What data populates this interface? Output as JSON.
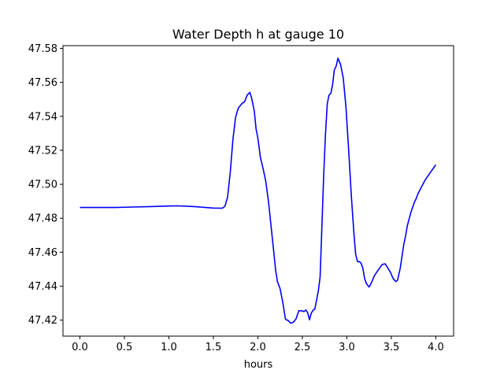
{
  "chart_data": {
    "type": "line",
    "title": "Water Depth h at gauge 10",
    "xlabel": "hours",
    "ylabel": "",
    "xlim": [
      -0.19,
      4.2
    ],
    "ylim": [
      47.4106,
      47.5816
    ],
    "xticks": [
      0.0,
      0.5,
      1.0,
      1.5,
      2.0,
      2.5,
      3.0,
      3.5,
      4.0
    ],
    "xtick_labels": [
      "0.0",
      "0.5",
      "1.0",
      "1.5",
      "2.0",
      "2.5",
      "3.0",
      "3.5",
      "4.0"
    ],
    "yticks": [
      47.42,
      47.44,
      47.46,
      47.48,
      47.5,
      47.52,
      47.54,
      47.56,
      47.58
    ],
    "ytick_labels": [
      "47.42",
      "47.44",
      "47.46",
      "47.48",
      "47.50",
      "47.52",
      "47.54",
      "47.56",
      "47.58"
    ],
    "grid": false,
    "series": [
      {
        "color": "#0000ff",
        "x": [
          0.0,
          0.2,
          0.4,
          0.6,
          0.8,
          1.0,
          1.1,
          1.2,
          1.3,
          1.4,
          1.5,
          1.6,
          1.63,
          1.66,
          1.69,
          1.72,
          1.75,
          1.78,
          1.82,
          1.85,
          1.88,
          1.91,
          1.93,
          1.96,
          1.98,
          2.0,
          2.03,
          2.06,
          2.09,
          2.12,
          2.15,
          2.18,
          2.2,
          2.22,
          2.25,
          2.28,
          2.31,
          2.34,
          2.37,
          2.4,
          2.43,
          2.46,
          2.49,
          2.52,
          2.54,
          2.56,
          2.58,
          2.6,
          2.62,
          2.64,
          2.66,
          2.68,
          2.7,
          2.72,
          2.74,
          2.76,
          2.78,
          2.8,
          2.82,
          2.84,
          2.86,
          2.88,
          2.9,
          2.93,
          2.96,
          2.99,
          3.02,
          3.05,
          3.08,
          3.1,
          3.12,
          3.14,
          3.16,
          3.18,
          3.2,
          3.22,
          3.25,
          3.28,
          3.31,
          3.34,
          3.37,
          3.4,
          3.43,
          3.46,
          3.49,
          3.52,
          3.55,
          3.57,
          3.6,
          3.62,
          3.64,
          3.66,
          3.68,
          3.7,
          3.72,
          3.74,
          3.76,
          3.78,
          3.8,
          3.82,
          3.84,
          3.86,
          3.88,
          3.92,
          3.96,
          4.0
        ],
        "values": [
          47.4863,
          47.4863,
          47.4863,
          47.4866,
          47.4869,
          47.4872,
          47.4873,
          47.4871,
          47.4868,
          47.4864,
          47.486,
          47.4859,
          47.487,
          47.4925,
          47.507,
          47.5265,
          47.5395,
          47.5448,
          47.5475,
          47.5485,
          47.5525,
          47.5541,
          47.5508,
          47.5432,
          47.5325,
          47.5272,
          47.5155,
          47.509,
          47.5015,
          47.4895,
          47.4745,
          47.4595,
          47.4495,
          47.4427,
          47.4385,
          47.4305,
          47.4205,
          47.4198,
          47.4182,
          47.4188,
          47.4208,
          47.4255,
          47.4255,
          47.4251,
          47.426,
          47.4244,
          47.4202,
          47.4241,
          47.4258,
          47.4264,
          47.4318,
          47.4374,
          47.4455,
          47.4755,
          47.5048,
          47.5295,
          47.5475,
          47.5525,
          47.5535,
          47.5585,
          47.5675,
          47.5695,
          47.5742,
          47.5705,
          47.5625,
          47.5455,
          47.5205,
          47.4935,
          47.4705,
          47.4585,
          47.4545,
          47.4545,
          47.4535,
          47.4505,
          47.4445,
          47.4415,
          47.4395,
          47.4425,
          47.4462,
          47.4485,
          47.4508,
          47.4528,
          47.4532,
          47.4508,
          47.4482,
          47.4445,
          47.4427,
          47.4435,
          47.4505,
          47.4575,
          47.4645,
          47.4695,
          47.4755,
          47.4795,
          47.4835,
          47.4865,
          47.4895,
          47.4915,
          47.4945,
          47.4965,
          47.4985,
          47.5005,
          47.5025,
          47.5055,
          47.5085,
          47.5115
        ]
      }
    ]
  }
}
